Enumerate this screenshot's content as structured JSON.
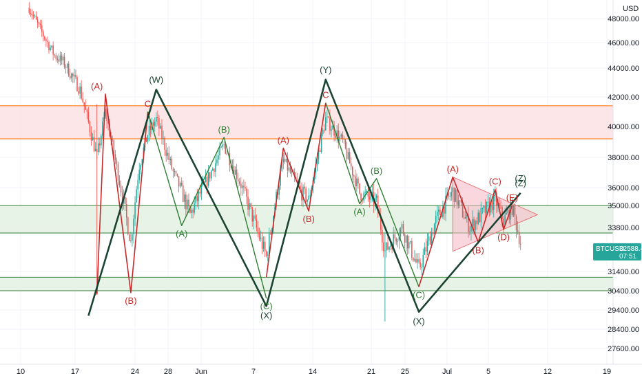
{
  "chart_data": {
    "type": "candlestick",
    "symbol": "BTCUSD",
    "currency": "USD",
    "last_price": "32588.42",
    "countdown": "07:51",
    "colors": {
      "up": "#26a69a",
      "down": "#ef5350",
      "wave_primary": "#1b4332",
      "wave_red": "#c62828",
      "wave_green": "#2e7d32",
      "resistance_fill": "#fbe0e2",
      "resistance_line": "#ff6d00",
      "support_fill": "#e6f2e6",
      "support_line": "#2e7d32",
      "triangle_fill": "#f5b7c5",
      "badge": "#26a69a"
    },
    "y_axis": {
      "ticks": [
        "48000.00",
        "46000.00",
        "44000.00",
        "42000.00",
        "40000.00",
        "38000.00",
        "36000.00",
        "35000.00",
        "33800.00",
        "31400.00",
        "30400.00",
        "29400.00",
        "28400.00",
        "27600.00"
      ],
      "ylim": [
        27000,
        49000
      ]
    },
    "x_axis": {
      "ticks": [
        "10",
        "17",
        "24",
        "28",
        "Jun",
        "7",
        "14",
        "21",
        "25",
        "Jul",
        "5",
        "12",
        "19"
      ]
    },
    "zones": [
      {
        "name": "resistance",
        "from": 39200,
        "to": 41400
      },
      {
        "name": "support-upper",
        "from": 33500,
        "to": 35000
      },
      {
        "name": "support-lower",
        "from": 30400,
        "to": 31100
      }
    ],
    "primary_wave": {
      "labels": [
        "(W)",
        "(X)",
        "(Y)",
        "(X)",
        "(Z)"
      ],
      "points": [
        {
          "x": "May 18",
          "y": 29100
        },
        {
          "x": "May 26",
          "y": 42500
        },
        {
          "x": "Jun 08",
          "y": 29600
        },
        {
          "x": "Jun 15",
          "y": 43200
        },
        {
          "x": "Jun 26",
          "y": 29300
        },
        {
          "x": "Jul 08",
          "y": 35700
        }
      ]
    },
    "waves": [
      {
        "label": "(A)",
        "color": "red",
        "x": "May 19",
        "y": 42200
      },
      {
        "label": "(B)",
        "color": "red",
        "x": "May 23",
        "y": 30300
      },
      {
        "label": "C",
        "color": "red",
        "x": "May 25",
        "y": 41000
      },
      {
        "label": "(A)",
        "color": "green",
        "x": "May 29",
        "y": 33900
      },
      {
        "label": "(B)",
        "color": "green",
        "x": "Jun 03",
        "y": 39300
      },
      {
        "label": "(C)",
        "color": "green",
        "x": "Jun 08",
        "y": 30000
      },
      {
        "label": "(A)",
        "color": "red",
        "x": "Jun 10",
        "y": 38600
      },
      {
        "label": "(B)",
        "color": "red",
        "x": "Jun 13",
        "y": 34700
      },
      {
        "label": "C",
        "color": "red",
        "x": "Jun 15",
        "y": 41600
      },
      {
        "label": "(A)",
        "color": "green",
        "x": "Jun 19",
        "y": 35100
      },
      {
        "label": "(B)",
        "color": "green",
        "x": "Jun 21",
        "y": 36600
      },
      {
        "label": "(C)",
        "color": "green",
        "x": "Jun 26",
        "y": 30600
      },
      {
        "label": "(A)",
        "color": "red",
        "x": "Jun 30",
        "y": 36700
      },
      {
        "label": "(B)",
        "color": "red",
        "x": "Jul 03",
        "y": 33000
      },
      {
        "label": "(C)",
        "color": "red",
        "x": "Jul 05",
        "y": 35900
      },
      {
        "label": "(D)",
        "color": "red",
        "x": "Jul 06",
        "y": 33700
      },
      {
        "label": "(E)",
        "color": "red",
        "x": "Jul 07",
        "y": 35000
      },
      {
        "label": "(Z)",
        "color": "primary",
        "x": "Jul 08",
        "y": 36100
      }
    ],
    "triangle": {
      "points": [
        {
          "x": "Jun 30",
          "y": 36700
        },
        {
          "x": "Jul 10",
          "y": 34500
        },
        {
          "x": "Jun 30",
          "y": 32500
        }
      ]
    }
  }
}
